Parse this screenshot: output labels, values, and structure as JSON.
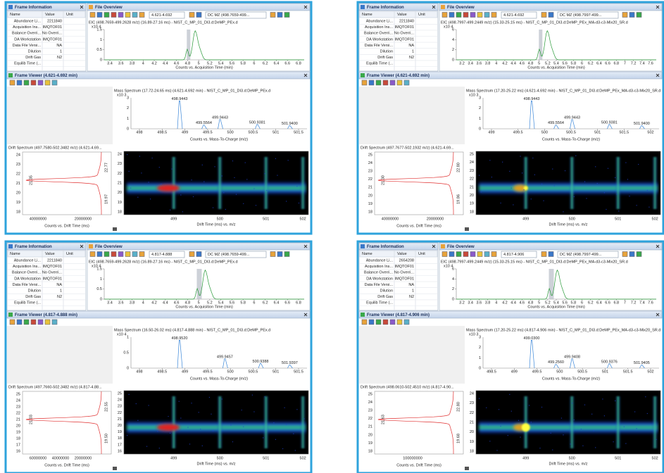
{
  "panels": [
    {
      "frame_info": {
        "title": "Frame Information",
        "columns": [
          "Name",
          "Value",
          "Unit"
        ],
        "rows": [
          [
            "Abundance Li...",
            "2211840"
          ],
          [
            "Acquisition Ins...",
            "IMQTOF01"
          ],
          [
            "Balance Overri...",
            "No Overri..."
          ],
          [
            "DA Workstation",
            "IMQTOF01"
          ],
          [
            "Data File Versi...",
            "NA"
          ],
          [
            "Dilution",
            "1"
          ],
          [
            "Drift Gas",
            "N2"
          ],
          [
            "Equilib Time (..."
          ]
        ]
      },
      "file_overview": {
        "title": "File Overview",
        "range": "4.621-4.692",
        "mz_box": "DC MZ (498.7659-499...",
        "eic_label": "EIC (498.7659-499.2628 m/z) (16.89-27.16 ms) - NIST_C_MP_01_DI3.d:DeMP_PEx.d",
        "y_exp": "x10 4",
        "yticks": [
          "1.5",
          "1",
          "0.5",
          "0"
        ],
        "xticks": [
          "3.4",
          "3.6",
          "3.8",
          "4",
          "4.2",
          "4.4",
          "4.6",
          "4.8",
          "5",
          "5.2",
          "5.4",
          "5.6",
          "5.8",
          "6",
          "6.2",
          "6.4",
          "6.6",
          "6.8"
        ],
        "x_title": "Counts vs. Acquisition Time (min)"
      },
      "frame_viewer": {
        "title": "Frame Viewer (4.621-4.692 min)",
        "ms_label": "Mass Spectrum (17.72-24.65 ms) (4.621-4.692 min) - NIST_C_MP_01_DI3.d:DeMP_PEx.d",
        "ms_exp": "x10 3",
        "ms_yticks": [
          "3",
          "2",
          "1",
          "0"
        ],
        "ms_peaks": [
          "498.9443",
          "499.5564",
          "499.9443",
          "500.9381",
          "501.9400"
        ],
        "ms_xticks": [
          "498",
          "498.5",
          "499",
          "499.5",
          "500",
          "500.5",
          "501",
          "501.5"
        ],
        "ms_x_title": "Counts vs. Mass-To-Charge (m/z)",
        "drift_label": "Drift Spectrum (497.7580-502.3482 m/z) (4.621-4.69...",
        "drift_yticks": [
          "24",
          "23",
          "22",
          "21",
          "20",
          "19",
          "18"
        ],
        "drift_peaks": [
          "22.77",
          "21.35",
          "19.97"
        ],
        "drift_xticks": [
          "40000000",
          "20000000"
        ],
        "drift_x_title": "Counts vs. Drift Time (ms)",
        "heat_yticks": [
          "24",
          "23",
          "22",
          "21",
          "20",
          "19",
          "18"
        ],
        "heat_xticks": [
          "499",
          "500",
          "501",
          "502"
        ],
        "heat_x_title": "Drift Time (ms) vs. m/z"
      }
    },
    {
      "frame_info": {
        "title": "Frame Information",
        "columns": [
          "Name",
          "Value",
          "Unit"
        ],
        "rows": [
          [
            "Abundance Li...",
            "2211840"
          ],
          [
            "Acquisition Ins...",
            "IMQTOF01"
          ],
          [
            "Balance Overri...",
            "No Overri..."
          ],
          [
            "DA Workstation",
            "IMQTOF01"
          ],
          [
            "Data File Versi...",
            "NA"
          ],
          [
            "Dilution",
            "1"
          ],
          [
            "Drift Gas",
            "N2"
          ],
          [
            "Equilib Time (..."
          ]
        ]
      },
      "file_overview": {
        "title": "File Overview",
        "range": "4.621-4.692",
        "mz_box": "DC MZ (498.7997-499...",
        "eic_label": "EIC (498.7997-499.2449 m/z) (15.33-25.15 ms) - NIST_C_MP_01_DI3.d:DeMP_PEx_MA-d3-c3-Mix20_SR.d",
        "y_exp": "x10 4",
        "yticks": [
          "6",
          "4",
          "2",
          "0"
        ],
        "xticks": [
          "3.2",
          "3.4",
          "3.6",
          "3.8",
          "4",
          "4.2",
          "4.4",
          "4.6",
          "4.8",
          "5",
          "5.2",
          "5.4",
          "5.6",
          "5.8",
          "6",
          "6.2",
          "6.4",
          "6.6",
          "6.8",
          "7",
          "7.2",
          "7.4",
          "7.6"
        ],
        "x_title": "Counts vs. Acquisition Time (min)"
      },
      "frame_viewer": {
        "title": "Frame Viewer (4.621-4.692 min)",
        "ms_label": "Mass Spectrum (17.20-25.22 ms) (4.621-4.692 min) - NIST_C_MP_01_DI3.d:DeMP_PEx_MA-d3-c3-Mix20_SR.d",
        "ms_exp": "x10 3",
        "ms_yticks": [
          "3",
          "2",
          "1",
          "0"
        ],
        "ms_peaks": [
          "498.9443",
          "499.5564",
          "499.9443",
          "500.9381",
          "501.9400"
        ],
        "ms_xticks": [
          "499",
          "499.5",
          "500",
          "500.5",
          "501",
          "501.5",
          "502"
        ],
        "ms_x_title": "Counts vs. Mass-To-Charge (m/z)",
        "drift_label": "Drift Spectrum (497.7677-502.1932 m/z) (4.621-4.69...",
        "drift_yticks": [
          "25",
          "24",
          "23",
          "22",
          "21",
          "20",
          "19",
          "18"
        ],
        "drift_peaks": [
          "22.80",
          "21.30",
          "19.86"
        ],
        "drift_xticks": [
          "40000000",
          "20000000"
        ],
        "drift_x_title": "Counts vs. Drift Time (ms)",
        "heat_yticks": [
          "25",
          "24",
          "23",
          "22",
          "21",
          "20",
          "19",
          "18"
        ],
        "heat_xticks": [
          "499",
          "500",
          "501",
          "502"
        ],
        "heat_x_title": "Drift Time (ms) vs. m/z"
      }
    },
    {
      "frame_info": {
        "title": "Frame Information",
        "columns": [
          "Name",
          "Value",
          "Unit"
        ],
        "rows": [
          [
            "Abundance Li...",
            "2211840"
          ],
          [
            "Acquisition Ins...",
            "IMQTOF01"
          ],
          [
            "Balance Overri...",
            "No Overri..."
          ],
          [
            "DA Workstation",
            "IMQTOF01"
          ],
          [
            "Data File Versi...",
            "NA"
          ],
          [
            "Dilution",
            "1"
          ],
          [
            "Drift Gas",
            "N2"
          ],
          [
            "Equilib Time (..."
          ]
        ]
      },
      "file_overview": {
        "title": "File Overview",
        "range": "4.817-4.888",
        "mz_box": "DC MZ (498.7659-499...",
        "eic_label": "EIC (498.7659-499.2628 m/z) (16.89-27.16 ms) - NIST_C_MP_01_DI3.d:DeMP_PEx.d",
        "y_exp": "x10 4",
        "yticks": [
          "1.5",
          "1",
          "0.5",
          "0"
        ],
        "xticks": [
          "3.4",
          "3.6",
          "3.8",
          "4",
          "4.2",
          "4.4",
          "4.6",
          "4.8",
          "5",
          "5.2",
          "5.4",
          "5.6",
          "5.8",
          "6",
          "6.2",
          "6.4",
          "6.6",
          "6.8"
        ],
        "x_title": "Counts vs. Acquisition Time (min)"
      },
      "frame_viewer": {
        "title": "Frame Viewer (4.817-4.888 min)",
        "ms_label": "Mass Spectrum (16.50-26.02 ms) (4.817-4.888 min) - NIST_C_MP_01_DI3.d:DeMP_PEx.d",
        "ms_exp": "x10 4",
        "ms_yticks": [
          "1",
          "0.5",
          "0"
        ],
        "ms_peaks": [
          "498.9520",
          "499.9457",
          "500.9388",
          "501.9397"
        ],
        "ms_xticks": [
          "498",
          "498.5",
          "499",
          "499.5",
          "500",
          "500.5",
          "501",
          "501.5"
        ],
        "ms_x_title": "Counts vs. Mass-To-Charge (m/z)",
        "drift_label": "Drift Spectrum (497.7660-502.3482 m/z) (4.817-4.88...",
        "drift_yticks": [
          "25",
          "24",
          "23",
          "22",
          "21",
          "20",
          "19",
          "18",
          "17",
          "16"
        ],
        "drift_peaks": [
          "22.55",
          "21.03",
          "19.50"
        ],
        "drift_xticks": [
          "60000000",
          "40000000",
          "20000000"
        ],
        "drift_x_title": "Counts vs. Drift Time (ms)",
        "heat_yticks": [
          "25",
          "24",
          "23",
          "22",
          "21",
          "20",
          "19",
          "18",
          "17",
          "16"
        ],
        "heat_xticks": [
          "499",
          "500",
          "501",
          "502"
        ],
        "heat_x_title": "Drift Time (ms) vs. m/z"
      }
    },
    {
      "frame_info": {
        "title": "Frame Information",
        "columns": [
          "Name",
          "Value",
          "Unit"
        ],
        "rows": [
          [
            "Abundance Li...",
            "2654208"
          ],
          [
            "Acquisition Ins...",
            "IMQTOF01"
          ],
          [
            "Balance Overri...",
            "No Overri..."
          ],
          [
            "DA Workstation",
            "IMQTOF01"
          ],
          [
            "Data File Versi...",
            "NA"
          ],
          [
            "Dilution",
            "1"
          ],
          [
            "Drift Gas",
            "N2"
          ],
          [
            "Equilib Time (..."
          ]
        ]
      },
      "file_overview": {
        "title": "File Overview",
        "range": "4.817-4.906",
        "mz_box": "DC MZ (498.7997-499...",
        "eic_label": "EIC (498.7997-499.2449 m/z) (15.33-25.15 ms) - NIST_C_MP_01_DI3.d:DeMP_PEx_MA-d3-c3-Mix20_SR.d",
        "y_exp": "x10 4",
        "yticks": [
          "6",
          "4",
          "2",
          "0"
        ],
        "xticks": [
          "3.2",
          "3.4",
          "3.6",
          "3.8",
          "4",
          "4.2",
          "4.4",
          "4.6",
          "4.8",
          "5",
          "5.2",
          "5.4",
          "5.6",
          "5.8",
          "6",
          "6.2",
          "6.4",
          "6.6",
          "6.8",
          "7",
          "7.2",
          "7.4",
          "7.6"
        ],
        "x_title": "Counts vs. Acquisition Time (min)"
      },
      "frame_viewer": {
        "title": "Frame Viewer (4.817-4.906 min)",
        "ms_label": "Mass Spectrum (17.20-25.22 ms) (4.817-4.906 min) - NIST_C_MP_01_DI3.d:DeMP_PEx_MA-d3-c3-Mix20_SR.d",
        "ms_exp": "x10 3",
        "ms_yticks": [
          "3",
          "2",
          "1",
          "0"
        ],
        "ms_peaks": [
          "499.0300",
          "499.2560",
          "499.9408",
          "500.9376",
          "501.9405"
        ],
        "ms_xticks": [
          "498.5",
          "499",
          "499.5",
          "500",
          "500.5",
          "501",
          "501.5",
          "502"
        ],
        "ms_x_title": "Counts vs. Mass-To-Charge (m/z)",
        "drift_label": "Drift Spectrum (498.0610-502.4510 m/z) (4.817-4.90...",
        "drift_yticks": [
          "25",
          "24",
          "23",
          "22",
          "21",
          "20",
          "19",
          "18"
        ],
        "drift_peaks": [
          "22.80",
          "21.63",
          "19.68"
        ],
        "drift_xticks": [
          "100000000"
        ],
        "drift_x_title": "Counts vs. Drift Time (ms)",
        "heat_yticks": [
          "24",
          "23",
          "22",
          "21",
          "20",
          "19",
          "18"
        ],
        "heat_xticks": [
          "499",
          "500",
          "501",
          "502"
        ],
        "heat_x_title": "Drift Time (ms) vs. m/z"
      }
    }
  ]
}
